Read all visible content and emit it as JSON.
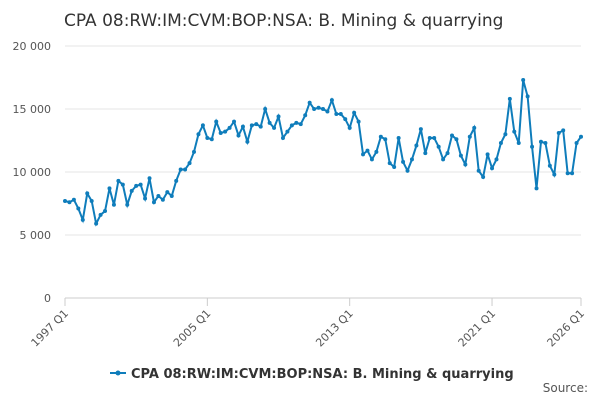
{
  "chart_data": {
    "type": "line",
    "title": "CPA 08:RW:IM:CVM:BOP:NSA: B. Mining & quarrying",
    "source": "Source:",
    "categories": [
      "1997 Q1",
      null,
      null,
      null,
      null,
      null,
      null,
      null,
      null,
      null,
      null,
      null,
      null,
      null,
      null,
      null,
      null,
      null,
      null,
      null,
      null,
      null,
      null,
      null,
      null,
      null,
      null,
      null,
      null,
      null,
      null,
      null,
      "2005 Q1",
      null,
      null,
      null,
      null,
      null,
      null,
      null,
      null,
      null,
      null,
      null,
      null,
      null,
      null,
      null,
      null,
      null,
      null,
      null,
      null,
      null,
      null,
      null,
      null,
      null,
      null,
      null,
      null,
      null,
      null,
      null,
      "2013 Q1",
      null,
      null,
      null,
      null,
      null,
      null,
      null,
      null,
      null,
      null,
      null,
      null,
      null,
      null,
      null,
      null,
      null,
      null,
      null,
      null,
      null,
      null,
      null,
      null,
      null,
      null,
      null,
      null,
      null,
      null,
      null,
      "2021 Q1",
      null,
      null,
      null,
      null,
      null,
      null,
      null,
      null,
      null,
      null,
      null,
      null,
      null,
      null,
      null,
      null,
      null,
      null,
      null,
      "2026 Q1"
    ],
    "series": [
      {
        "name": "CPA 08:RW:IM:CVM:BOP:NSA: B. Mining & quarrying",
        "color": "#0f7dbb",
        "values": [
          7700,
          7600,
          7800,
          7100,
          6200,
          8300,
          7700,
          5900,
          6600,
          6900,
          8700,
          7400,
          9300,
          9000,
          7400,
          8500,
          8900,
          9000,
          7900,
          9500,
          7600,
          8100,
          7800,
          8400,
          8100,
          9300,
          10200,
          10200,
          10700,
          11600,
          13000,
          13700,
          12700,
          12600,
          14000,
          13100,
          13200,
          13500,
          14000,
          12900,
          13600,
          12400,
          13700,
          13800,
          13600,
          15000,
          13900,
          13500,
          14400,
          12700,
          13200,
          13700,
          13900,
          13800,
          14500,
          15500,
          15000,
          15100,
          15000,
          14800,
          15700,
          14600,
          14600,
          14200,
          13500,
          14700,
          14000,
          11400,
          11700,
          11000,
          11600,
          12800,
          12600,
          10700,
          10400,
          12700,
          10800,
          10100,
          11000,
          12100,
          13400,
          11500,
          12700,
          12700,
          12000,
          11000,
          11500,
          12900,
          12600,
          11300,
          10600,
          12800,
          13500,
          10100,
          9600,
          11400,
          10300,
          11000,
          12300,
          13000,
          15800,
          13200,
          12300,
          17300,
          16000,
          12000,
          8700,
          12400,
          12300,
          10500,
          9800,
          13100,
          13300,
          9900,
          9900,
          12300,
          12800
        ]
      }
    ],
    "ylim": [
      0,
      20000
    ],
    "yticks": [
      0,
      {
        "value": 5000,
        "label": "5 000"
      },
      {
        "value": 10000,
        "label": "10 000"
      },
      {
        "value": 15000,
        "label": "15 000"
      },
      {
        "value": 20000,
        "label": "20 000"
      }
    ],
    "grid": true
  }
}
